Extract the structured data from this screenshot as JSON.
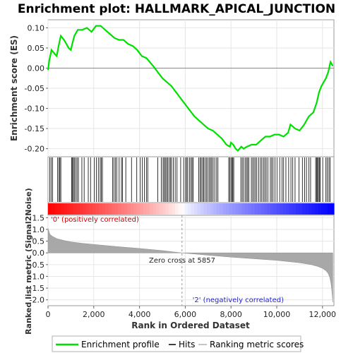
{
  "chart_data": [
    {
      "type": "line",
      "title": "Enrichment plot: HALLMARK_APICAL_JUNCTION",
      "ylabel": "Enrichment score (ES)",
      "xlim": [
        0,
        12500
      ],
      "ylim": [
        -0.22,
        0.12
      ],
      "yticks": [
        0.1,
        0.05,
        0.0,
        -0.05,
        -0.1,
        -0.15,
        -0.2
      ],
      "ytick_labels": [
        "0.10",
        "0.05",
        "0.00",
        "-0.05",
        "-0.10",
        "-0.15",
        "-0.20"
      ],
      "series": [
        {
          "name": "Enrichment profile",
          "color": "#00e000",
          "x": [
            0,
            60,
            150,
            300,
            380,
            480,
            560,
            700,
            900,
            1000,
            1060,
            1150,
            1300,
            1500,
            1700,
            1900,
            2100,
            2300,
            2500,
            2700,
            2900,
            3100,
            3300,
            3500,
            3700,
            3900,
            4100,
            4300,
            4450,
            4600,
            4800,
            5000,
            5200,
            5400,
            5600,
            5800,
            6000,
            6200,
            6400,
            6600,
            6800,
            7000,
            7200,
            7400,
            7600,
            7800,
            7950,
            8000,
            8100,
            8200,
            8300,
            8450,
            8550,
            8700,
            8900,
            9100,
            9300,
            9500,
            9700,
            9900,
            10100,
            10300,
            10500,
            10600,
            10700,
            10800,
            11000,
            11200,
            11400,
            11600,
            11750,
            11850,
            11950,
            12050,
            12150,
            12250,
            12350,
            12450
          ],
          "values": [
            -0.005,
            0.02,
            0.045,
            0.035,
            0.03,
            0.06,
            0.08,
            0.07,
            0.05,
            0.045,
            0.06,
            0.08,
            0.095,
            0.095,
            0.1,
            0.09,
            0.105,
            0.105,
            0.095,
            0.085,
            0.075,
            0.07,
            0.07,
            0.06,
            0.055,
            0.045,
            0.03,
            0.025,
            0.015,
            0.005,
            -0.01,
            -0.025,
            -0.035,
            -0.045,
            -0.06,
            -0.075,
            -0.09,
            -0.105,
            -0.12,
            -0.13,
            -0.14,
            -0.15,
            -0.155,
            -0.165,
            -0.175,
            -0.19,
            -0.195,
            -0.185,
            -0.19,
            -0.2,
            -0.205,
            -0.195,
            -0.2,
            -0.195,
            -0.19,
            -0.19,
            -0.18,
            -0.17,
            -0.17,
            -0.165,
            -0.165,
            -0.17,
            -0.16,
            -0.14,
            -0.145,
            -0.15,
            -0.155,
            -0.14,
            -0.12,
            -0.11,
            -0.085,
            -0.06,
            -0.045,
            -0.035,
            -0.025,
            -0.01,
            0.015,
            0.005
          ]
        }
      ]
    },
    {
      "type": "scatter",
      "name": "hits",
      "legend_entry": "Hits",
      "color": "#000000",
      "x": [
        80,
        140,
        200,
        420,
        480,
        520,
        560,
        1030,
        1070,
        1110,
        1150,
        1210,
        1270,
        1330,
        1480,
        1580,
        1760,
        1860,
        2020,
        2110,
        2200,
        2280,
        2330,
        2380,
        2820,
        2880,
        2950,
        3010,
        3110,
        3210,
        3260,
        3400,
        3650,
        3880,
        4030,
        4120,
        4210,
        4300,
        4360,
        4800,
        4950,
        5030,
        5080,
        5130,
        5180,
        5230,
        5290,
        5350,
        5400,
        5480,
        5560,
        5640,
        5800,
        5930,
        6010,
        6060,
        6110,
        6190,
        6250,
        6300,
        6350,
        6590,
        6650,
        6700,
        6760,
        6810,
        6870,
        6930,
        6990,
        7050,
        7110,
        7160,
        7220,
        7290,
        7370,
        7430,
        7900,
        7950,
        8000,
        8050,
        8080,
        8120,
        8430,
        8490,
        8550,
        8620,
        8680,
        8730,
        8780,
        8890,
        8950,
        9010,
        9070,
        9130,
        9210,
        9290,
        9350,
        9420,
        9480,
        9540,
        9610,
        9720,
        9780,
        9840,
        9920,
        10010,
        10130,
        10230,
        10300,
        10400,
        10520,
        10620,
        10700,
        10800,
        10970,
        11120,
        11220,
        11300,
        11400,
        11480,
        11700,
        11740,
        11780,
        11820,
        11860,
        11900,
        12010,
        12150,
        12210,
        12280,
        12330
      ]
    },
    {
      "type": "area",
      "ylabel": "Ranked list metric (Signal2Noise)",
      "xlabel": "Rank in Ordered Dataset",
      "legend_entry": "Ranking metric scores",
      "color": "#a0a0a0",
      "xlim": [
        0,
        12500
      ],
      "ylim": [
        -2.25,
        1.6
      ],
      "yticks": [
        1.5,
        1.0,
        0.5,
        0.0,
        -0.5,
        -1.0,
        -1.5,
        -2.0
      ],
      "ytick_labels": [
        "1.5",
        "1.0",
        "0.5",
        "0.0",
        "-0.5",
        "-1.0",
        "-1.5",
        "-2.0"
      ],
      "xticks": [
        0,
        2000,
        4000,
        6000,
        8000,
        10000,
        12000
      ],
      "xtick_labels": [
        "0",
        "2,000",
        "4,000",
        "6,000",
        "8,000",
        "10,000",
        "12,000"
      ],
      "x": [
        0,
        10,
        30,
        60,
        100,
        200,
        400,
        700,
        1000,
        1500,
        2000,
        3000,
        4000,
        5000,
        5857,
        7000,
        8000,
        9000,
        10000,
        11000,
        11500,
        11800,
        12000,
        12150,
        12250,
        12320,
        12370,
        12400,
        12430,
        12450
      ],
      "values": [
        1.05,
        1.0,
        0.95,
        0.85,
        0.78,
        0.7,
        0.6,
        0.53,
        0.47,
        0.41,
        0.36,
        0.27,
        0.19,
        0.1,
        0.0,
        -0.1,
        -0.18,
        -0.25,
        -0.32,
        -0.42,
        -0.5,
        -0.58,
        -0.66,
        -0.76,
        -0.88,
        -1.05,
        -1.3,
        -1.55,
        -1.85,
        -2.1
      ],
      "zero_cross": 5857,
      "annotations": [
        "Zero cross at 5857",
        "'0' (positively correlated)",
        "'2' (negatively correlated)"
      ]
    }
  ],
  "legend": {
    "items": [
      "Enrichment profile",
      "Hits",
      "Ranking metric scores"
    ],
    "colors": [
      "#00e000",
      "#000000",
      "#b0b0b0"
    ],
    "position": "bottom"
  },
  "colors": {
    "positive": "#ff0000",
    "neutral": "#ffffff",
    "negative": "#0000ff",
    "dark_negative": "#1a00c0"
  }
}
